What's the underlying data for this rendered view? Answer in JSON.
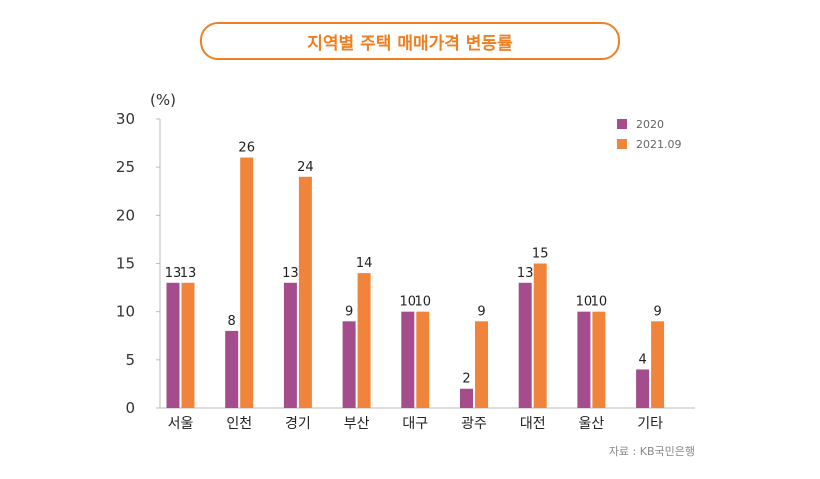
{
  "title": "지역별 주택 매매가격 변동률",
  "chart_data": {
    "type": "bar",
    "unit": "(%)",
    "categories": [
      "서울",
      "인천",
      "경기",
      "부산",
      "대구",
      "광주",
      "대전",
      "울산",
      "기타"
    ],
    "series": [
      {
        "name": "2020",
        "color": "#a54d8c",
        "values": [
          13,
          8,
          13,
          9,
          10,
          2,
          13,
          10,
          4
        ]
      },
      {
        "name": "2021.09",
        "color": "#f0843a",
        "values": [
          13,
          26,
          24,
          14,
          10,
          9,
          15,
          10,
          9
        ]
      }
    ],
    "ylim": [
      0,
      30
    ],
    "yticks": [
      0,
      5,
      10,
      15,
      20,
      25,
      30
    ],
    "grid": false,
    "legend": "top-right"
  },
  "source": "자료 : KB국민은행"
}
